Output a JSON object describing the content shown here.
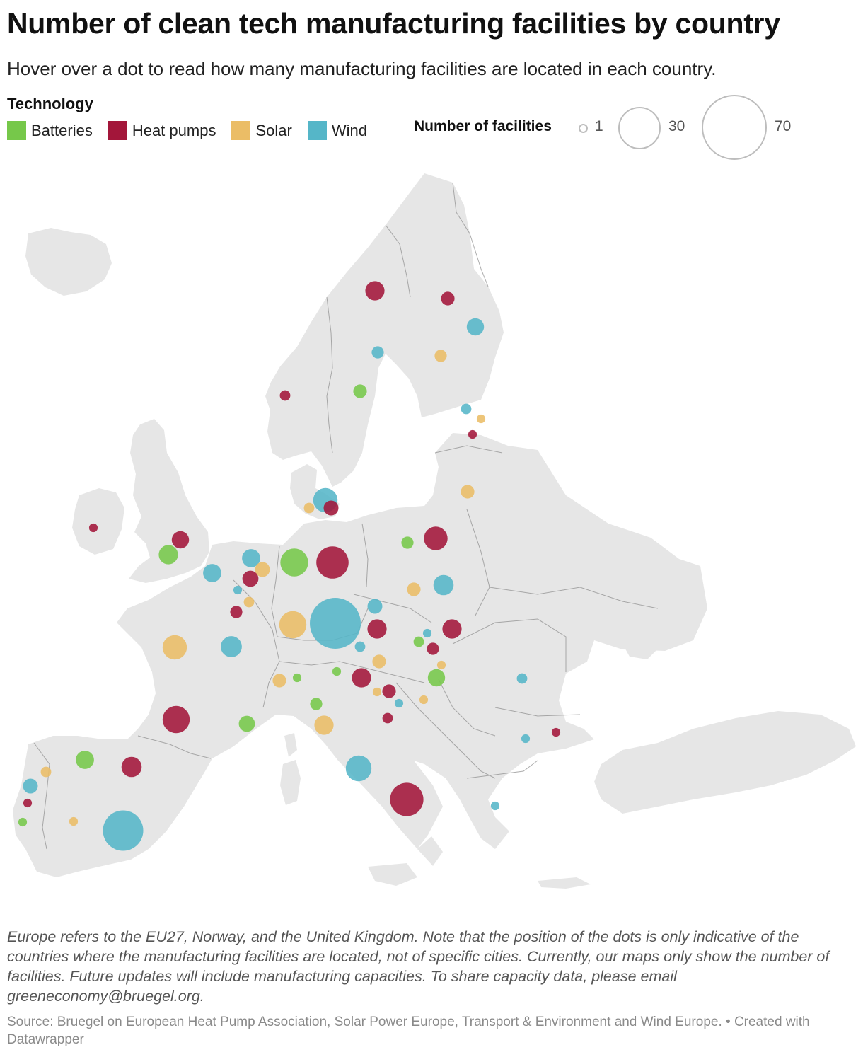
{
  "header": {
    "title": "Number of clean tech manufacturing facilities by country",
    "subtitle": "Hover over a dot to read how many manufacturing facilities are located in each country."
  },
  "legend": {
    "heading": "Technology",
    "items": [
      {
        "label": "Batteries",
        "color": "#76c84a"
      },
      {
        "label": "Heat pumps",
        "color": "#a3163a"
      },
      {
        "label": "Solar",
        "color": "#ebbd66"
      },
      {
        "label": "Wind",
        "color": "#55b6c8"
      }
    ],
    "size_title": "Number of facilities",
    "sizes": [
      "1",
      "30",
      "70"
    ]
  },
  "map": {
    "land_color": "#e6e6e6",
    "border_color": "#8a8a8a",
    "dots": [
      {
        "tech": "Heat pumps",
        "area": "Sweden north",
        "value": 10
      },
      {
        "tech": "Heat pumps",
        "area": "Finland north",
        "value": 5
      },
      {
        "tech": "Wind",
        "area": "Finland east",
        "value": 8
      },
      {
        "tech": "Wind",
        "area": "Sweden",
        "value": 4
      },
      {
        "tech": "Solar",
        "area": "Finland",
        "value": 4
      },
      {
        "tech": "Batteries",
        "area": "Sweden",
        "value": 5
      },
      {
        "tech": "Heat pumps",
        "area": "Norway",
        "value": 3
      },
      {
        "tech": "Wind",
        "area": "Estonia",
        "value": 3
      },
      {
        "tech": "Solar",
        "area": "Estonia",
        "value": 2
      },
      {
        "tech": "Heat pumps",
        "area": "Latvia",
        "value": 2
      },
      {
        "tech": "Solar",
        "area": "Lithuania",
        "value": 5
      },
      {
        "tech": "Wind",
        "area": "Denmark",
        "value": 16
      },
      {
        "tech": "Solar",
        "area": "Denmark",
        "value": 3
      },
      {
        "tech": "Heat pumps",
        "area": "Denmark",
        "value": 6
      },
      {
        "tech": "Heat pumps",
        "area": "Ireland",
        "value": 2
      },
      {
        "tech": "Heat pumps",
        "area": "United Kingdom",
        "value": 8
      },
      {
        "tech": "Batteries",
        "area": "United Kingdom",
        "value": 10
      },
      {
        "tech": "Wind",
        "area": "United Kingdom",
        "value": 9
      },
      {
        "tech": "Wind",
        "area": "Netherlands",
        "value": 9
      },
      {
        "tech": "Solar",
        "area": "Netherlands",
        "value": 6
      },
      {
        "tech": "Heat pumps",
        "area": "Belgium",
        "value": 7
      },
      {
        "tech": "Wind",
        "area": "Belgium",
        "value": 2
      },
      {
        "tech": "Solar",
        "area": "Luxembourg",
        "value": 3
      },
      {
        "tech": "Heat pumps",
        "area": "Luxembourg",
        "value": 4
      },
      {
        "tech": "Batteries",
        "area": "Germany",
        "value": 21
      },
      {
        "tech": "Heat pumps",
        "area": "Germany",
        "value": 28
      },
      {
        "tech": "Solar",
        "area": "Germany",
        "value": 20
      },
      {
        "tech": "Wind",
        "area": "Germany",
        "value": 70
      },
      {
        "tech": "Batteries",
        "area": "Poland",
        "value": 4
      },
      {
        "tech": "Heat pumps",
        "area": "Poland",
        "value": 15
      },
      {
        "tech": "Wind",
        "area": "Poland",
        "value": 11
      },
      {
        "tech": "Solar",
        "area": "Poland",
        "value": 5
      },
      {
        "tech": "Wind",
        "area": "Czechia",
        "value": 6
      },
      {
        "tech": "Heat pumps",
        "area": "Czechia",
        "value": 10
      },
      {
        "tech": "Wind",
        "area": "Slovakia",
        "value": 2
      },
      {
        "tech": "Heat pumps",
        "area": "Slovakia",
        "value": 10
      },
      {
        "tech": "Batteries",
        "area": "Slovakia",
        "value": 3
      },
      {
        "tech": "Heat pumps",
        "area": "Hungary",
        "value": 4
      },
      {
        "tech": "Wind",
        "area": "Austria",
        "value": 3
      },
      {
        "tech": "Solar",
        "area": "Austria",
        "value": 5
      },
      {
        "tech": "Heat pumps",
        "area": "Austria",
        "value": 10
      },
      {
        "tech": "Batteries",
        "area": "Hungary",
        "value": 8
      },
      {
        "tech": "Solar",
        "area": "Hungary",
        "value": 2
      },
      {
        "tech": "Solar",
        "area": "France",
        "value": 16
      },
      {
        "tech": "Wind",
        "area": "France",
        "value": 12
      },
      {
        "tech": "Heat pumps",
        "area": "France",
        "value": 20
      },
      {
        "tech": "Batteries",
        "area": "France",
        "value": 7
      },
      {
        "tech": "Solar",
        "area": "Switzerland",
        "value": 5
      },
      {
        "tech": "Batteries",
        "area": "Switzerland",
        "value": 2
      },
      {
        "tech": "Batteries",
        "area": "Austria west",
        "value": 2
      },
      {
        "tech": "Batteries",
        "area": "Italy north",
        "value": 4
      },
      {
        "tech": "Solar",
        "area": "Italy",
        "value": 10
      },
      {
        "tech": "Solar",
        "area": "Slovenia",
        "value": 2
      },
      {
        "tech": "Heat pumps",
        "area": "Slovenia",
        "value": 5
      },
      {
        "tech": "Wind",
        "area": "Croatia",
        "value": 2
      },
      {
        "tech": "Heat pumps",
        "area": "Croatia",
        "value": 3
      },
      {
        "tech": "Solar",
        "area": "Croatia",
        "value": 2
      },
      {
        "tech": "Wind",
        "area": "Italy",
        "value": 18
      },
      {
        "tech": "Heat pumps",
        "area": "Italy south",
        "value": 30
      },
      {
        "tech": "Wind",
        "area": "Romania",
        "value": 3
      },
      {
        "tech": "Heat pumps",
        "area": "Bulgaria",
        "value": 2
      },
      {
        "tech": "Wind",
        "area": "Bulgaria",
        "value": 2
      },
      {
        "tech": "Wind",
        "area": "Greece",
        "value": 2
      },
      {
        "tech": "Batteries",
        "area": "Spain north",
        "value": 9
      },
      {
        "tech": "Heat pumps",
        "area": "Spain",
        "value": 11
      },
      {
        "tech": "Wind",
        "area": "Spain",
        "value": 44
      },
      {
        "tech": "Solar",
        "area": "Portugal",
        "value": 3
      },
      {
        "tech": "Wind",
        "area": "Portugal",
        "value": 6
      },
      {
        "tech": "Heat pumps",
        "area": "Portugal",
        "value": 2
      },
      {
        "tech": "Batteries",
        "area": "Portugal south",
        "value": 2
      },
      {
        "tech": "Solar",
        "area": "Spain south",
        "value": 2
      }
    ]
  },
  "footer": {
    "notes": "Europe refers to the EU27, Norway, and the United Kingdom. Note that the position of the dots is only indicative of the countries where the manufacturing facilities are located, not of specific cities. Currently, our maps only show the number of facilities. Future updates will include manufacturing capacities. To share capacity data, please email greeneconomy@bruegel.org.",
    "source": "Source: Bruegel on European Heat Pump Association, Solar Power Europe, Transport & Environment and Wind Europe. • Created with Datawrapper"
  }
}
